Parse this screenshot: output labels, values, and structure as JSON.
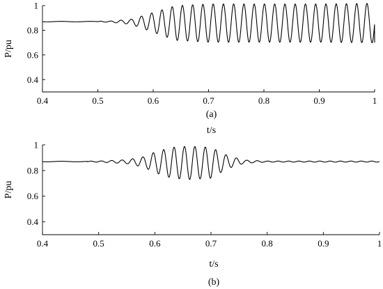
{
  "chart_data": [
    {
      "type": "line",
      "caption": "(a)",
      "xlabel": "t/s",
      "ylabel": "P/pu",
      "xlim": [
        0.4,
        1.0
      ],
      "ylim": [
        0.3,
        1.0
      ],
      "xticks": [
        "0.4",
        "0.5",
        "0.6",
        "0.7",
        "0.8",
        "0.9",
        "1"
      ],
      "yticks": [
        "0.4",
        "0.6",
        "0.8",
        "1"
      ],
      "series": [
        {
          "style": "black oscillating trace, ~54 Hz",
          "steady_value": 0.87,
          "oscillation_onset_t": 0.52,
          "amplitude_envelope": [
            {
              "t": 0.4,
              "amp": 0.0
            },
            {
              "t": 0.52,
              "amp": 0.004
            },
            {
              "t": 0.56,
              "amp": 0.02
            },
            {
              "t": 0.6,
              "amp": 0.08
            },
            {
              "t": 0.64,
              "amp": 0.14
            },
            {
              "t": 0.7,
              "amp": 0.155
            },
            {
              "t": 0.8,
              "amp": 0.155
            },
            {
              "t": 0.9,
              "amp": 0.155
            },
            {
              "t": 1.0,
              "amp": 0.16
            }
          ],
          "end_value": 0.7
        }
      ]
    },
    {
      "type": "line",
      "caption": "(b)",
      "xlabel": "t/s",
      "ylabel": "P/pu",
      "xlim": [
        0.4,
        1.0
      ],
      "ylim": [
        0.3,
        1.0
      ],
      "xticks": [
        "0.4",
        "0.5",
        "0.6",
        "0.7",
        "0.8",
        "0.9",
        "1"
      ],
      "yticks": [
        "0.4",
        "0.6",
        "0.8",
        "1"
      ],
      "series": [
        {
          "style": "black oscillating trace, ~54 Hz",
          "steady_value": 0.87,
          "oscillation_onset_t": 0.5,
          "amplitude_envelope": [
            {
              "t": 0.4,
              "amp": 0.0
            },
            {
              "t": 0.5,
              "amp": 0.004
            },
            {
              "t": 0.55,
              "amp": 0.015
            },
            {
              "t": 0.58,
              "amp": 0.04
            },
            {
              "t": 0.6,
              "amp": 0.08
            },
            {
              "t": 0.63,
              "amp": 0.12
            },
            {
              "t": 0.66,
              "amp": 0.13
            },
            {
              "t": 0.7,
              "amp": 0.12
            },
            {
              "t": 0.73,
              "amp": 0.05
            },
            {
              "t": 0.76,
              "amp": 0.012
            },
            {
              "t": 0.8,
              "amp": 0.004
            },
            {
              "t": 1.0,
              "amp": 0.004
            }
          ],
          "end_value": 0.87
        }
      ]
    }
  ]
}
